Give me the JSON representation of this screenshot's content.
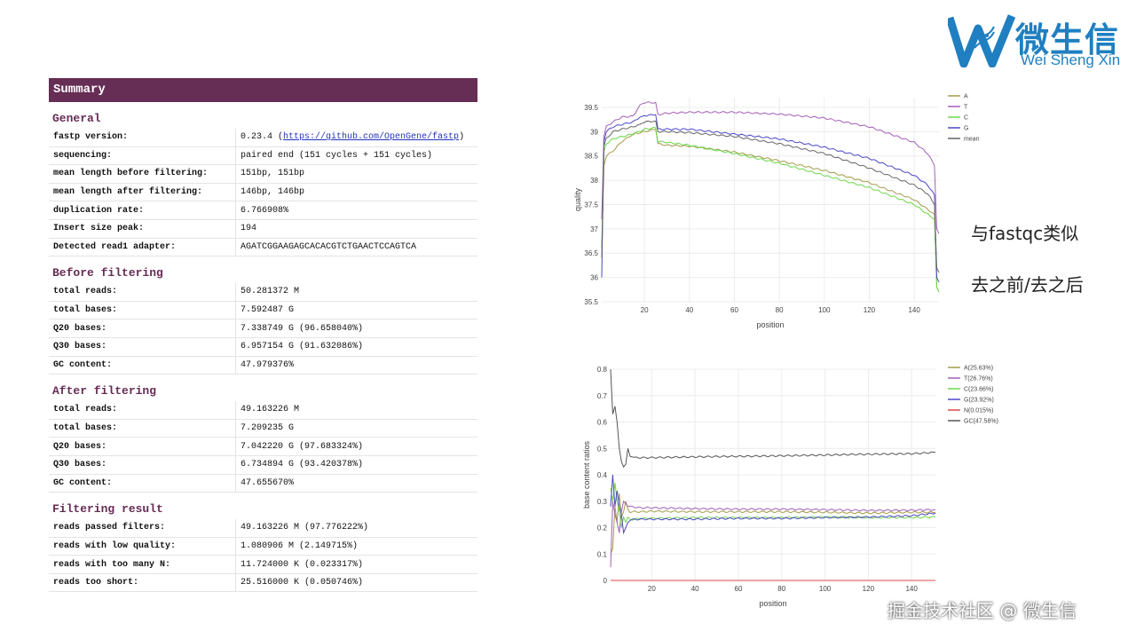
{
  "logo": {
    "cn": "微生信",
    "en": "Wei Sheng Xin"
  },
  "report": {
    "header": "Summary",
    "sections": [
      {
        "title": "General",
        "rows": [
          {
            "key": "fastp version:",
            "value": "0.23.4 (",
            "link": "https://github.com/OpenGene/fastp",
            "suffix": ")"
          },
          {
            "key": "sequencing:",
            "value": "paired end (151 cycles + 151 cycles)"
          },
          {
            "key": "mean length before filtering:",
            "value": "151bp, 151bp"
          },
          {
            "key": "mean length after filtering:",
            "value": "146bp, 146bp"
          },
          {
            "key": "duplication rate:",
            "value": "6.766908%"
          },
          {
            "key": "Insert size peak:",
            "value": "194"
          },
          {
            "key": "Detected read1 adapter:",
            "value": "AGATCGGAAGAGCACACGTCTGAACTCCAGTCA"
          }
        ]
      },
      {
        "title": "Before filtering",
        "rows": [
          {
            "key": "total reads:",
            "value": "50.281372 M"
          },
          {
            "key": "total bases:",
            "value": "7.592487 G"
          },
          {
            "key": "Q20 bases:",
            "value": "7.338749 G (96.658040%)"
          },
          {
            "key": "Q30 bases:",
            "value": "6.957154 G (91.632086%)"
          },
          {
            "key": "GC content:",
            "value": "47.979376%"
          }
        ]
      },
      {
        "title": "After filtering",
        "rows": [
          {
            "key": "total reads:",
            "value": "49.163226 M"
          },
          {
            "key": "total bases:",
            "value": "7.209235 G"
          },
          {
            "key": "Q20 bases:",
            "value": "7.042220 G (97.683324%)"
          },
          {
            "key": "Q30 bases:",
            "value": "6.734894 G (93.420378%)"
          },
          {
            "key": "GC content:",
            "value": "47.655670%"
          }
        ]
      },
      {
        "title": "Filtering result",
        "rows": [
          {
            "key": "reads passed filters:",
            "value": "49.163226 M (97.776222%)"
          },
          {
            "key": "reads with low quality:",
            "value": "1.080906 M (2.149715%)"
          },
          {
            "key": "reads with too many N:",
            "value": "11.724000 K (0.023317%)"
          },
          {
            "key": "reads too short:",
            "value": "25.516000 K (0.050746%)"
          }
        ]
      }
    ]
  },
  "notes": {
    "line1": "与fastqc类似",
    "line2": "去之前/去之后"
  },
  "watermark": "掘金技术社区 @ 微生信",
  "chart_data": [
    {
      "type": "line",
      "xlabel": "position",
      "ylabel": "quality",
      "xlim": [
        1,
        151
      ],
      "ylim": [
        35.5,
        39.7
      ],
      "xticks": [
        20,
        40,
        60,
        80,
        100,
        120,
        140
      ],
      "yticks": [
        35.5,
        36,
        36.5,
        37,
        37.5,
        38,
        38.5,
        39,
        39.5
      ],
      "legend_position": "top-right",
      "series": [
        {
          "name": "A",
          "color": "#a39d4a",
          "points": [
            [
              1,
              36.6
            ],
            [
              2,
              38.3
            ],
            [
              3,
              38.5
            ],
            [
              6,
              38.6
            ],
            [
              10,
              38.8
            ],
            [
              15,
              38.95
            ],
            [
              20,
              39.0
            ],
            [
              25,
              39.05
            ],
            [
              26,
              38.75
            ],
            [
              30,
              38.72
            ],
            [
              40,
              38.7
            ],
            [
              60,
              38.58
            ],
            [
              80,
              38.4
            ],
            [
              100,
              38.2
            ],
            [
              120,
              37.95
            ],
            [
              140,
              37.6
            ],
            [
              146,
              37.4
            ],
            [
              149,
              37.3
            ],
            [
              150,
              35.8
            ],
            [
              151,
              35.7
            ]
          ]
        },
        {
          "name": "T",
          "color": "#a35fb8",
          "points": [
            [
              1,
              37.2
            ],
            [
              2,
              38.9
            ],
            [
              3,
              39.1
            ],
            [
              6,
              39.2
            ],
            [
              10,
              39.3
            ],
            [
              15,
              39.32
            ],
            [
              18,
              39.55
            ],
            [
              20,
              39.6
            ],
            [
              25,
              39.6
            ],
            [
              26,
              39.35
            ],
            [
              30,
              39.38
            ],
            [
              40,
              39.4
            ],
            [
              60,
              39.4
            ],
            [
              80,
              39.36
            ],
            [
              100,
              39.28
            ],
            [
              120,
              39.1
            ],
            [
              140,
              38.78
            ],
            [
              146,
              38.55
            ],
            [
              149,
              38.3
            ],
            [
              150,
              37.0
            ],
            [
              151,
              36.9
            ]
          ]
        },
        {
          "name": "C",
          "color": "#6ad84a",
          "points": [
            [
              1,
              36.6
            ],
            [
              2,
              38.6
            ],
            [
              3,
              38.75
            ],
            [
              6,
              38.85
            ],
            [
              10,
              38.9
            ],
            [
              15,
              38.95
            ],
            [
              20,
              39.05
            ],
            [
              25,
              39.08
            ],
            [
              26,
              38.8
            ],
            [
              30,
              38.78
            ],
            [
              40,
              38.72
            ],
            [
              60,
              38.55
            ],
            [
              80,
              38.35
            ],
            [
              100,
              38.1
            ],
            [
              120,
              37.85
            ],
            [
              140,
              37.5
            ],
            [
              146,
              37.3
            ],
            [
              149,
              37.2
            ],
            [
              150,
              35.8
            ],
            [
              151,
              35.7
            ]
          ]
        },
        {
          "name": "G",
          "color": "#4e47c6",
          "points": [
            [
              1,
              36.0
            ],
            [
              2,
              38.8
            ],
            [
              3,
              39.0
            ],
            [
              6,
              39.1
            ],
            [
              10,
              39.15
            ],
            [
              15,
              39.2
            ],
            [
              18,
              39.3
            ],
            [
              20,
              39.33
            ],
            [
              25,
              39.35
            ],
            [
              26,
              39.05
            ],
            [
              30,
              39.05
            ],
            [
              40,
              39.05
            ],
            [
              60,
              38.95
            ],
            [
              80,
              38.85
            ],
            [
              100,
              38.68
            ],
            [
              120,
              38.45
            ],
            [
              140,
              38.1
            ],
            [
              146,
              37.9
            ],
            [
              149,
              37.7
            ],
            [
              150,
              36.0
            ],
            [
              151,
              35.9
            ]
          ]
        },
        {
          "name": "mean",
          "color": "#666666",
          "points": [
            [
              1,
              36.4
            ],
            [
              2,
              38.7
            ],
            [
              3,
              38.85
            ],
            [
              6,
              39.0
            ],
            [
              10,
              39.05
            ],
            [
              15,
              39.1
            ],
            [
              18,
              39.15
            ],
            [
              20,
              39.2
            ],
            [
              25,
              39.22
            ],
            [
              26,
              39.0
            ],
            [
              30,
              39.0
            ],
            [
              40,
              38.98
            ],
            [
              60,
              38.9
            ],
            [
              80,
              38.75
            ],
            [
              100,
              38.55
            ],
            [
              120,
              38.25
            ],
            [
              140,
              37.9
            ],
            [
              146,
              37.72
            ],
            [
              149,
              37.5
            ],
            [
              150,
              36.2
            ],
            [
              151,
              36.1
            ]
          ]
        }
      ]
    },
    {
      "type": "line",
      "xlabel": "position",
      "ylabel": "base content ratios",
      "xlim": [
        1,
        151
      ],
      "ylim": [
        0,
        0.8
      ],
      "xticks": [
        20,
        40,
        60,
        80,
        100,
        120,
        140
      ],
      "yticks": [
        0,
        0.1,
        0.2,
        0.3,
        0.4,
        0.5,
        0.6,
        0.7,
        0.8
      ],
      "legend_position": "top-right",
      "series": [
        {
          "name": "A(25.63%)",
          "color": "#a39d4a",
          "points": [
            [
              1,
              0.1
            ],
            [
              2,
              0.12
            ],
            [
              3,
              0.28
            ],
            [
              4,
              0.22
            ],
            [
              5,
              0.33
            ],
            [
              6,
              0.24
            ],
            [
              7,
              0.26
            ],
            [
              8,
              0.3
            ],
            [
              9,
              0.27
            ],
            [
              10,
              0.26
            ],
            [
              15,
              0.26
            ],
            [
              20,
              0.262
            ],
            [
              40,
              0.26
            ],
            [
              60,
              0.26
            ],
            [
              80,
              0.26
            ],
            [
              100,
              0.258
            ],
            [
              120,
              0.255
            ],
            [
              140,
              0.258
            ],
            [
              151,
              0.258
            ]
          ]
        },
        {
          "name": "T(26.76%)",
          "color": "#a35fb8",
          "points": [
            [
              1,
              0.05
            ],
            [
              2,
              0.3
            ],
            [
              3,
              0.25
            ],
            [
              4,
              0.22
            ],
            [
              5,
              0.18
            ],
            [
              6,
              0.26
            ],
            [
              7,
              0.3
            ],
            [
              8,
              0.29
            ],
            [
              9,
              0.28
            ],
            [
              10,
              0.28
            ],
            [
              15,
              0.275
            ],
            [
              20,
              0.275
            ],
            [
              40,
              0.272
            ],
            [
              60,
              0.27
            ],
            [
              80,
              0.27
            ],
            [
              100,
              0.268
            ],
            [
              120,
              0.265
            ],
            [
              140,
              0.266
            ],
            [
              151,
              0.268
            ]
          ]
        },
        {
          "name": "C(23.66%)",
          "color": "#6ad84a",
          "points": [
            [
              1,
              0.35
            ],
            [
              2,
              0.3
            ],
            [
              3,
              0.37
            ],
            [
              4,
              0.3
            ],
            [
              5,
              0.26
            ],
            [
              6,
              0.2
            ],
            [
              7,
              0.24
            ],
            [
              8,
              0.22
            ],
            [
              9,
              0.24
            ],
            [
              10,
              0.23
            ],
            [
              15,
              0.235
            ],
            [
              20,
              0.235
            ],
            [
              40,
              0.238
            ],
            [
              60,
              0.238
            ],
            [
              80,
              0.238
            ],
            [
              100,
              0.24
            ],
            [
              120,
              0.238
            ],
            [
              140,
              0.238
            ],
            [
              151,
              0.24
            ]
          ]
        },
        {
          "name": "G(23.92%)",
          "color": "#4e47c6",
          "points": [
            [
              1,
              0.28
            ],
            [
              2,
              0.4
            ],
            [
              3,
              0.28
            ],
            [
              4,
              0.34
            ],
            [
              5,
              0.28
            ],
            [
              6,
              0.25
            ],
            [
              7,
              0.18
            ],
            [
              8,
              0.2
            ],
            [
              9,
              0.22
            ],
            [
              10,
              0.23
            ],
            [
              15,
              0.232
            ],
            [
              20,
              0.232
            ],
            [
              40,
              0.232
            ],
            [
              60,
              0.235
            ],
            [
              80,
              0.235
            ],
            [
              100,
              0.238
            ],
            [
              120,
              0.24
            ],
            [
              140,
              0.245
            ],
            [
              151,
              0.255
            ]
          ]
        },
        {
          "name": "N(0.015%)",
          "color": "#e04848",
          "points": [
            [
              1,
              0.0
            ],
            [
              151,
              0.0
            ]
          ]
        },
        {
          "name": "GC(47.58%)",
          "color": "#555555",
          "points": [
            [
              1,
              0.8
            ],
            [
              2,
              0.63
            ],
            [
              3,
              0.66
            ],
            [
              4,
              0.6
            ],
            [
              5,
              0.5
            ],
            [
              6,
              0.45
            ],
            [
              7,
              0.43
            ],
            [
              8,
              0.44
            ],
            [
              9,
              0.5
            ],
            [
              10,
              0.47
            ],
            [
              12,
              0.465
            ],
            [
              20,
              0.465
            ],
            [
              40,
              0.468
            ],
            [
              60,
              0.47
            ],
            [
              80,
              0.472
            ],
            [
              100,
              0.475
            ],
            [
              120,
              0.478
            ],
            [
              140,
              0.48
            ],
            [
              151,
              0.485
            ]
          ]
        }
      ]
    }
  ]
}
